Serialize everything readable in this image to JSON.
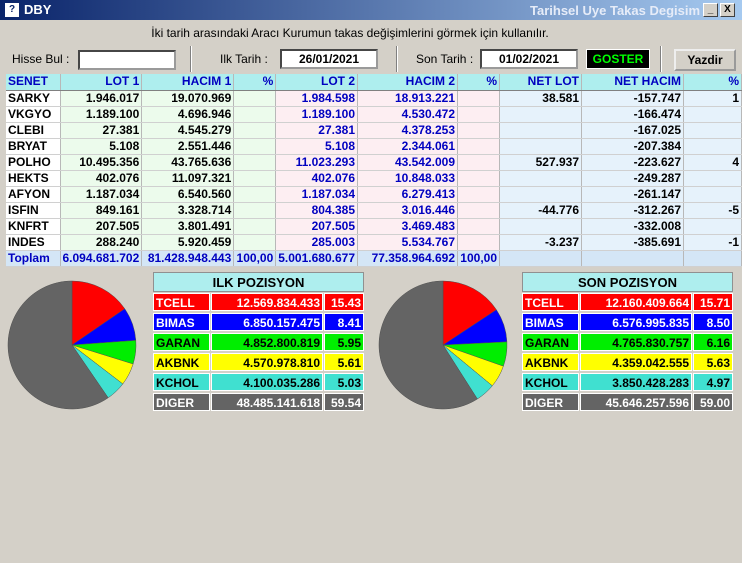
{
  "window": {
    "icon": "?",
    "title": "DBY",
    "title_right": "Tarihsel Uye Takas Degisim",
    "min_label": "_",
    "close_label": "X"
  },
  "instruction": "İki tarih arasındaki  Aracı Kurumun takas değişimlerini görmek için kullanılır.",
  "form": {
    "hisse_label": "Hisse Bul :",
    "hisse_value": "",
    "ilk_label": "Ilk Tarih :",
    "ilk_value": "26/01/2021",
    "son_label": "Son Tarih :",
    "son_value": "01/02/2021",
    "goster_label": "GOSTER",
    "yazdir_label": "Yazdir"
  },
  "table": {
    "headers": [
      "SENET",
      "LOT 1",
      "HACIM 1",
      "%",
      "LOT 2",
      "HACIM 2",
      "%",
      "NET LOT",
      "NET HACIM",
      "%"
    ],
    "rows": [
      [
        "SARKY",
        "1.946.017",
        "19.070.969",
        "",
        "1.984.598",
        "18.913.221",
        "",
        "38.581",
        "-157.747",
        "1"
      ],
      [
        "VKGYO",
        "1.189.100",
        "4.696.946",
        "",
        "1.189.100",
        "4.530.472",
        "",
        "",
        "-166.474",
        ""
      ],
      [
        "CLEBI",
        "27.381",
        "4.545.279",
        "",
        "27.381",
        "4.378.253",
        "",
        "",
        "-167.025",
        ""
      ],
      [
        "BRYAT",
        "5.108",
        "2.551.446",
        "",
        "5.108",
        "2.344.061",
        "",
        "",
        "-207.384",
        ""
      ],
      [
        "POLHO",
        "10.495.356",
        "43.765.636",
        "",
        "11.023.293",
        "43.542.009",
        "",
        "527.937",
        "-223.627",
        "4"
      ],
      [
        "HEKTS",
        "402.076",
        "11.097.321",
        "",
        "402.076",
        "10.848.033",
        "",
        "",
        "-249.287",
        ""
      ],
      [
        "AFYON",
        "1.187.034",
        "6.540.560",
        "",
        "1.187.034",
        "6.279.413",
        "",
        "",
        "-261.147",
        ""
      ],
      [
        "ISFIN",
        "849.161",
        "3.328.714",
        "",
        "804.385",
        "3.016.446",
        "",
        "-44.776",
        "-312.267",
        "-5"
      ],
      [
        "KNFRT",
        "207.505",
        "3.801.491",
        "",
        "207.505",
        "3.469.483",
        "",
        "",
        "-332.008",
        ""
      ],
      [
        "INDES",
        "288.240",
        "5.920.459",
        "",
        "285.003",
        "5.534.767",
        "",
        "-3.237",
        "-385.691",
        "-1"
      ]
    ],
    "total": [
      "Toplam",
      "6.094.681.702",
      "81.428.948.443",
      "100,00",
      "5.001.680.677",
      "77.358.964.692",
      "100,00",
      "",
      "",
      ""
    ]
  },
  "ilk_pozisyon": {
    "title": "ILK POZISYON",
    "items": [
      {
        "symbol": "TCELL",
        "value": "12.569.834.433",
        "pct": "15.43"
      },
      {
        "symbol": "BIMAS",
        "value": "6.850.157.475",
        "pct": "8.41"
      },
      {
        "symbol": "GARAN",
        "value": "4.852.800.819",
        "pct": "5.95"
      },
      {
        "symbol": "AKBNK",
        "value": "4.570.978.810",
        "pct": "5.61"
      },
      {
        "symbol": "KCHOL",
        "value": "4.100.035.286",
        "pct": "5.03"
      },
      {
        "symbol": "DIGER",
        "value": "48.485.141.618",
        "pct": "59.54"
      }
    ]
  },
  "son_pozisyon": {
    "title": "SON POZISYON",
    "items": [
      {
        "symbol": "TCELL",
        "value": "12.160.409.664",
        "pct": "15.71"
      },
      {
        "symbol": "BIMAS",
        "value": "6.576.995.835",
        "pct": "8.50"
      },
      {
        "symbol": "GARAN",
        "value": "4.765.830.757",
        "pct": "6.16"
      },
      {
        "symbol": "AKBNK",
        "value": "4.359.042.555",
        "pct": "5.63"
      },
      {
        "symbol": "KCHOL",
        "value": "3.850.428.283",
        "pct": "4.97"
      },
      {
        "symbol": "DIGER",
        "value": "45.646.257.596",
        "pct": "59.00"
      }
    ]
  },
  "colors": {
    "TCELL": {
      "bg": "#ff0000",
      "fg": "#ffffff"
    },
    "BIMAS": {
      "bg": "#0000ff",
      "fg": "#ffffff"
    },
    "GARAN": {
      "bg": "#00ee00",
      "fg": "#000000"
    },
    "AKBNK": {
      "bg": "#ffff00",
      "fg": "#000000"
    },
    "KCHOL": {
      "bg": "#40e0d0",
      "fg": "#000000"
    },
    "DIGER": {
      "bg": "#646464",
      "fg": "#ffffff"
    }
  }
}
